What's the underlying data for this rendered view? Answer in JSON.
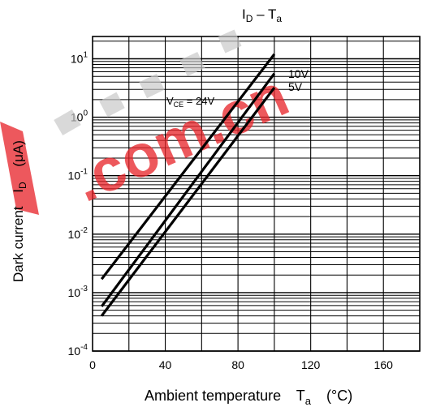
{
  "chart_data": {
    "type": "line",
    "title_main": "I",
    "title_sub": "D",
    "title_rest": " – T",
    "title_sub2": "a",
    "xlabel": "Ambient temperature",
    "xlabel_sym": "T",
    "xlabel_sub": "a",
    "xlabel_unit": "(°C)",
    "ylabel": "Dark current",
    "ylabel_sym": "I",
    "ylabel_sub": "D",
    "ylabel_unit": "(μA)",
    "xlim": [
      0,
      180
    ],
    "ylim": [
      0.0001,
      20
    ],
    "y_scale": "log",
    "x_ticks": [
      "0",
      "40",
      "80",
      "120",
      "160"
    ],
    "y_ticks": [
      {
        "base": "10",
        "exp": "1",
        "value": 10
      },
      {
        "base": "10",
        "exp": "0",
        "value": 1
      },
      {
        "base": "10",
        "exp": "-1",
        "value": 0.1
      },
      {
        "base": "10",
        "exp": "-2",
        "value": 0.01
      },
      {
        "base": "10",
        "exp": "-3",
        "value": 0.001
      },
      {
        "base": "10",
        "exp": "-4",
        "value": 0.0001
      }
    ],
    "grid": true,
    "series": [
      {
        "name": "10V",
        "x": [
          5,
          100
        ],
        "y": [
          0.0017,
          12
        ],
        "color": "#000000"
      },
      {
        "name": "5V",
        "x": [
          5,
          100
        ],
        "y": [
          0.0004,
          3.2
        ],
        "color": "#000000"
      },
      {
        "name_main": "V",
        "name_sub": "CE",
        "name_rest": " = 24V",
        "x": [
          5,
          100
        ],
        "y": [
          0.00058,
          5.6
        ],
        "color": "#000000"
      }
    ]
  },
  "watermark": {
    "text": ".com.cn",
    "color": "#e8262c"
  }
}
